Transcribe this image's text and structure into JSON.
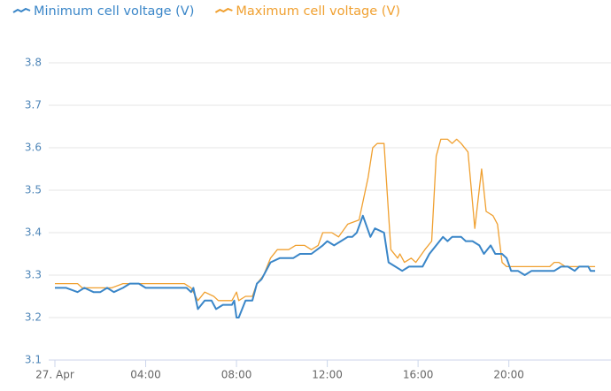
{
  "chart_data": {
    "type": "line",
    "legend": "top-left",
    "grid": true,
    "xlim": [
      0,
      24.5
    ],
    "xticks": [
      {
        "value": 0,
        "label": "27. Apr"
      },
      {
        "value": 4,
        "label": "04:00"
      },
      {
        "value": 8,
        "label": "08:00"
      },
      {
        "value": 12,
        "label": "12:00"
      },
      {
        "value": 16,
        "label": "16:00"
      },
      {
        "value": 20,
        "label": "20:00"
      }
    ],
    "ylim": [
      3.1,
      3.8
    ],
    "yticks": [
      3.1,
      3.2,
      3.3,
      3.4,
      3.5,
      3.6,
      3.7,
      3.8
    ],
    "series": [
      {
        "name": "Minimum cell voltage (V)",
        "color": "#3a86c8",
        "x": [
          0,
          0.5,
          1,
          1.3,
          1.7,
          2,
          2.3,
          2.6,
          3,
          3.3,
          3.7,
          4,
          5,
          5.8,
          6.0,
          6.1,
          6.3,
          6.6,
          6.9,
          7.1,
          7.4,
          7.8,
          7.9,
          8.0,
          8.1,
          8.4,
          8.7,
          8.9,
          9.1,
          9.5,
          9.9,
          10.5,
          10.8,
          11.3,
          11.8,
          12.0,
          12.3,
          12.6,
          12.9,
          13.1,
          13.3,
          13.57,
          13.9,
          14.1,
          14.5,
          14.7,
          15.0,
          15.3,
          15.6,
          16.0,
          16.2,
          16.5,
          16.8,
          17.1,
          17.3,
          17.5,
          17.9,
          18.1,
          18.4,
          18.7,
          18.9,
          19.2,
          19.4,
          19.7,
          19.9,
          20.1,
          20.4,
          20.7,
          21.0,
          22.0,
          22.3,
          22.6,
          22.9,
          23.1,
          23.5,
          23.6,
          23.8
        ],
        "values": [
          3.27,
          3.27,
          3.26,
          3.27,
          3.26,
          3.26,
          3.27,
          3.26,
          3.27,
          3.28,
          3.28,
          3.27,
          3.27,
          3.27,
          3.26,
          3.27,
          3.22,
          3.24,
          3.24,
          3.22,
          3.23,
          3.23,
          3.24,
          3.2,
          3.2,
          3.24,
          3.24,
          3.28,
          3.29,
          3.33,
          3.34,
          3.34,
          3.35,
          3.35,
          3.37,
          3.38,
          3.37,
          3.38,
          3.39,
          3.39,
          3.4,
          3.44,
          3.39,
          3.41,
          3.4,
          3.33,
          3.32,
          3.31,
          3.32,
          3.32,
          3.32,
          3.35,
          3.37,
          3.39,
          3.38,
          3.39,
          3.39,
          3.38,
          3.38,
          3.37,
          3.35,
          3.37,
          3.35,
          3.35,
          3.34,
          3.31,
          3.31,
          3.3,
          3.31,
          3.31,
          3.32,
          3.32,
          3.31,
          3.32,
          3.32,
          3.31,
          3.31
        ]
      },
      {
        "name": "Maximum cell voltage (V)",
        "color": "#f0a030",
        "x": [
          0,
          1.0,
          1.2,
          2,
          2.5,
          3.0,
          4,
          5,
          5.7,
          6.0,
          6.3,
          6.6,
          7.0,
          7.2,
          7.8,
          7.9,
          8.0,
          8.1,
          8.4,
          8.7,
          8.9,
          9.2,
          9.5,
          9.8,
          10.3,
          10.6,
          11.0,
          11.3,
          11.6,
          11.8,
          12.2,
          12.5,
          12.9,
          13.4,
          13.8,
          14.0,
          14.2,
          14.5,
          14.8,
          15.1,
          15.2,
          15.4,
          15.7,
          15.9,
          16.3,
          16.6,
          16.8,
          17.0,
          17.3,
          17.5,
          17.7,
          17.9,
          18.2,
          18.5,
          18.8,
          19.0,
          19.3,
          19.5,
          19.7,
          19.9,
          21.0,
          21.8,
          22.0,
          22.2,
          22.5,
          23.8
        ],
        "values": [
          3.28,
          3.28,
          3.27,
          3.27,
          3.27,
          3.28,
          3.28,
          3.28,
          3.28,
          3.27,
          3.24,
          3.26,
          3.25,
          3.24,
          3.24,
          3.25,
          3.26,
          3.24,
          3.25,
          3.25,
          3.28,
          3.3,
          3.34,
          3.36,
          3.36,
          3.37,
          3.37,
          3.36,
          3.37,
          3.4,
          3.4,
          3.39,
          3.42,
          3.43,
          3.53,
          3.6,
          3.61,
          3.61,
          3.36,
          3.34,
          3.35,
          3.33,
          3.34,
          3.33,
          3.36,
          3.38,
          3.58,
          3.62,
          3.62,
          3.61,
          3.62,
          3.61,
          3.59,
          3.41,
          3.55,
          3.45,
          3.44,
          3.42,
          3.33,
          3.32,
          3.32,
          3.32,
          3.33,
          3.33,
          3.32,
          3.32
        ]
      }
    ]
  }
}
